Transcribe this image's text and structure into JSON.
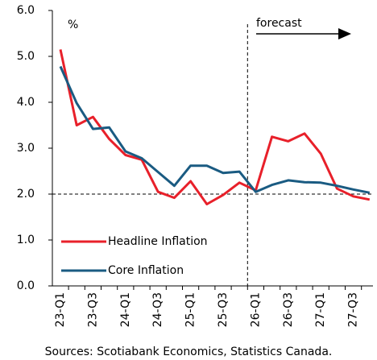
{
  "chart_data": {
    "type": "line",
    "y_unit_label": "%",
    "annotation": "forecast",
    "source": "Sources: Scotiabank Economics, Statistics Canada.",
    "categories": [
      "23-Q1",
      null,
      "23-Q3",
      null,
      "24-Q1",
      null,
      "24-Q3",
      null,
      "25-Q1",
      null,
      "25-Q3",
      null,
      "26-Q1",
      null,
      "26-Q3",
      null,
      "27-Q1",
      null,
      "27-Q3",
      null
    ],
    "series": [
      {
        "name": "Headline Inflation",
        "color": "#e8202a",
        "values": [
          5.15,
          3.5,
          3.68,
          3.2,
          2.85,
          2.75,
          2.05,
          1.92,
          2.28,
          1.78,
          1.98,
          2.25,
          2.08,
          3.25,
          3.15,
          3.32,
          2.88,
          2.12,
          1.95,
          1.88
        ]
      },
      {
        "name": "Core Inflation",
        "color": "#1a5b82",
        "values": [
          4.78,
          3.98,
          3.42,
          3.45,
          2.93,
          2.78,
          2.48,
          2.18,
          2.62,
          2.62,
          2.46,
          2.49,
          2.05,
          2.2,
          2.3,
          2.26,
          2.25,
          2.18,
          2.1,
          2.03
        ]
      }
    ],
    "reference_line": 2,
    "ylim": [
      0,
      6
    ],
    "yticks": [
      {
        "value": 0,
        "label": "0.0"
      },
      {
        "value": 1,
        "label": "1.0"
      },
      {
        "value": 2,
        "label": "2.0"
      },
      {
        "value": 3,
        "label": "3.0"
      },
      {
        "value": 4,
        "label": "4.0"
      },
      {
        "value": 5,
        "label": "5.0"
      },
      {
        "value": 6,
        "label": "6.0"
      }
    ],
    "grid": false,
    "legend": "lower left"
  }
}
